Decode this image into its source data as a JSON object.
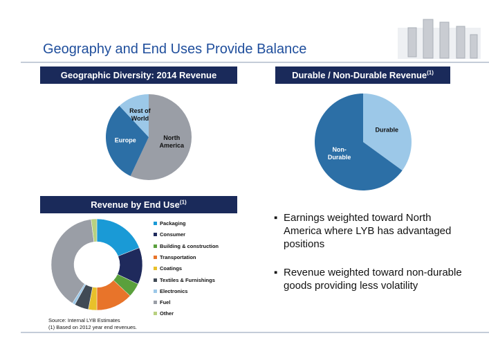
{
  "slide": {
    "title": "Geography and End Uses Provide Balance",
    "bullets": [
      "Earnings weighted toward North America where LYB has advantaged positions",
      "Revenue weighted toward non-durable goods providing less volatility"
    ],
    "source": [
      "Source: Internal LYB Estimates",
      "(1) Based on 2012 year end revenues."
    ]
  },
  "chart_data": [
    {
      "type": "pie",
      "title": "Geographic Diversity:  2014 Revenue",
      "categories": [
        "North America",
        "Europe",
        "Rest of World"
      ],
      "values": [
        57,
        31,
        12
      ],
      "colors": [
        "#9a9ea6",
        "#2c6fa6",
        "#9cc8e8"
      ]
    },
    {
      "type": "pie",
      "title": "Durable / Non-Durable Revenue",
      "title_note": "(1)",
      "categories": [
        "Durable",
        "Non-Durable"
      ],
      "values": [
        35,
        65
      ],
      "colors": [
        "#9cc8e8",
        "#2c6fa6"
      ]
    },
    {
      "type": "donut",
      "title": "Revenue by End Use",
      "title_note": "(1)",
      "categories": [
        "Packaging",
        "Consumer",
        "Building & construction",
        "Transportation",
        "Coatings",
        "Textiles & Furnishings",
        "Electronics",
        "Fuel",
        "Other"
      ],
      "values": [
        19,
        13,
        5,
        13,
        3,
        5,
        1,
        39,
        2
      ],
      "colors": [
        "#1a9ad6",
        "#1f2a5c",
        "#5aa03c",
        "#e8742a",
        "#e8c02a",
        "#404a55",
        "#9cc8e8",
        "#9a9ea6",
        "#b8d080"
      ],
      "legend": "right"
    }
  ]
}
